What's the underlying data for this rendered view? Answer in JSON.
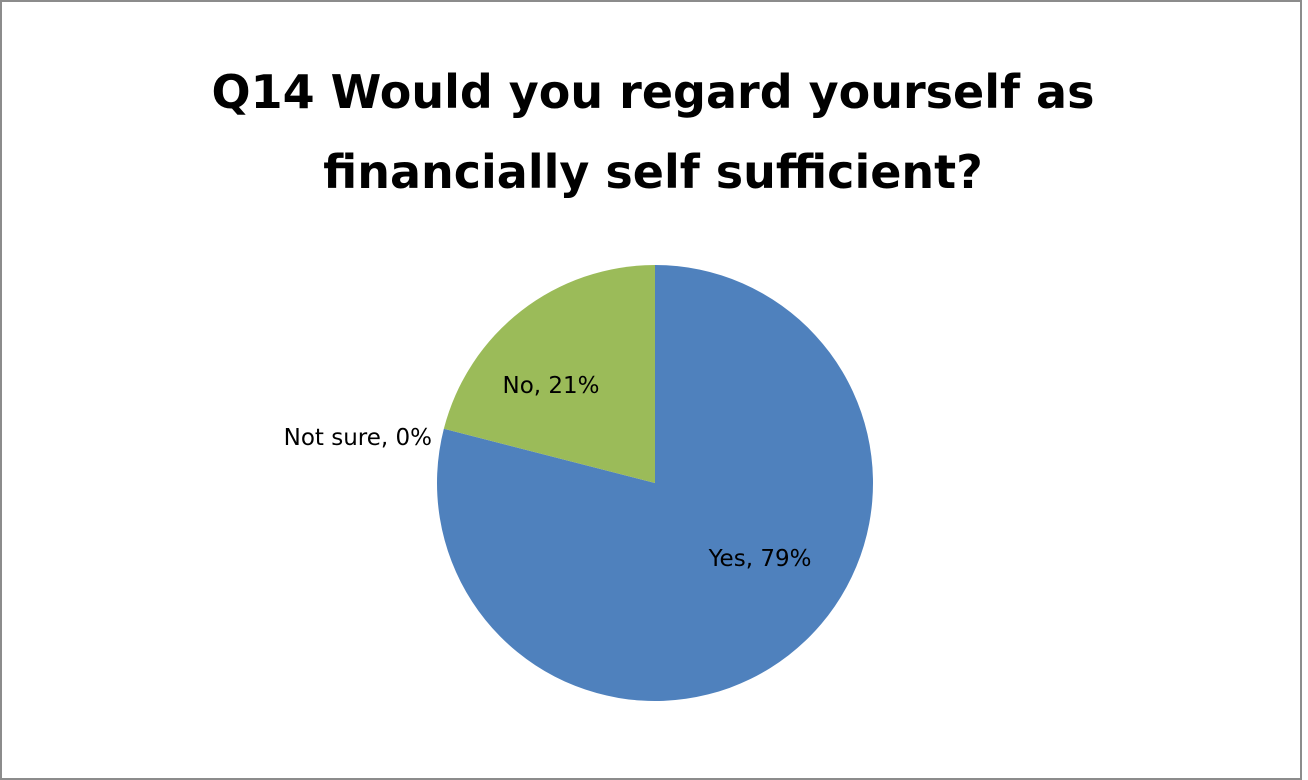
{
  "chart_data": {
    "type": "pie",
    "title_lines": [
      "Q14 Would you regard yourself as",
      "financially self sufficient?"
    ],
    "slices": [
      {
        "category": "Yes",
        "value": 79,
        "label": "Yes, 79%",
        "color": "#4f81bd"
      },
      {
        "category": "Not sure",
        "value": 0,
        "label": "Not sure, 0%",
        "color": "#c0504d"
      },
      {
        "category": "No",
        "value": 21,
        "label": "No, 21%",
        "color": "#9bbb59"
      }
    ],
    "legend": "none"
  }
}
